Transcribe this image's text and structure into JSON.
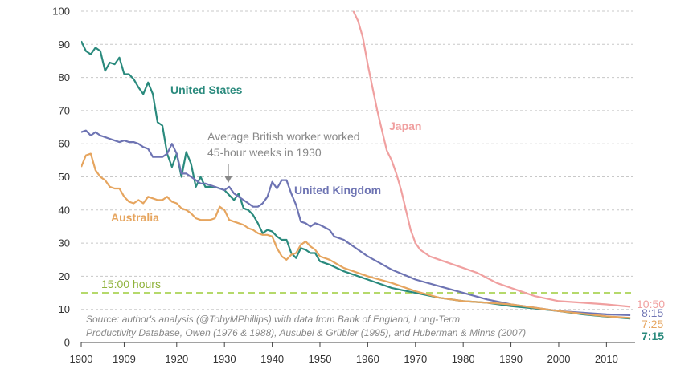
{
  "chart_data": {
    "type": "line",
    "title": "",
    "xlabel": "",
    "ylabel": "",
    "xlim": [
      1900,
      2016
    ],
    "ylim": [
      0,
      100
    ],
    "x_ticks": [
      1900,
      1909,
      1920,
      1930,
      1940,
      1950,
      1960,
      1970,
      1980,
      1990,
      2000,
      2010
    ],
    "x_tick_labels": [
      "1900",
      "1909",
      "1920",
      "1930",
      "1940",
      "1950",
      "1960",
      "1970",
      "1980",
      "1990",
      "2000",
      "2010"
    ],
    "y_ticks": [
      0,
      10,
      20,
      30,
      40,
      50,
      60,
      70,
      80,
      90,
      100
    ],
    "y_tick_labels": [
      "0",
      "10",
      "20",
      "30",
      "40",
      "50",
      "60",
      "70",
      "80",
      "90",
      "100"
    ],
    "grid": "horizontal dashed",
    "series": [
      {
        "name": "United States",
        "color": "#2a8a7d",
        "points": [
          [
            1900,
            91
          ],
          [
            1901,
            88
          ],
          [
            1902,
            87
          ],
          [
            1903,
            89
          ],
          [
            1904,
            88
          ],
          [
            1905,
            82
          ],
          [
            1906,
            84.5
          ],
          [
            1907,
            84
          ],
          [
            1908,
            86
          ],
          [
            1909,
            81
          ],
          [
            1910,
            81
          ],
          [
            1911,
            79.5
          ],
          [
            1912,
            77
          ],
          [
            1913,
            75
          ],
          [
            1914,
            78.5
          ],
          [
            1915,
            75
          ],
          [
            1916,
            66.5
          ],
          [
            1917,
            65.5
          ],
          [
            1918,
            57
          ],
          [
            1919,
            53
          ],
          [
            1920,
            57
          ],
          [
            1921,
            50
          ],
          [
            1922,
            57.5
          ],
          [
            1923,
            54
          ],
          [
            1924,
            47
          ],
          [
            1925,
            50
          ],
          [
            1926,
            47
          ],
          [
            1927,
            47
          ],
          [
            1928,
            47
          ],
          [
            1929,
            46.5
          ],
          [
            1930,
            46
          ],
          [
            1931,
            44.5
          ],
          [
            1932,
            43
          ],
          [
            1933,
            45
          ],
          [
            1934,
            40.5
          ],
          [
            1935,
            40
          ],
          [
            1936,
            38.5
          ],
          [
            1937,
            36
          ],
          [
            1938,
            33
          ],
          [
            1939,
            34
          ],
          [
            1940,
            33.5
          ],
          [
            1941,
            32
          ],
          [
            1942,
            31
          ],
          [
            1943,
            31
          ],
          [
            1944,
            27
          ],
          [
            1945,
            25.5
          ],
          [
            1946,
            28.5
          ],
          [
            1947,
            28
          ],
          [
            1948,
            27
          ],
          [
            1949,
            27
          ],
          [
            1950,
            24.5
          ],
          [
            1952,
            23.5
          ],
          [
            1955,
            21.5
          ],
          [
            1960,
            19
          ],
          [
            1965,
            16.5
          ],
          [
            1970,
            15
          ],
          [
            1975,
            13.5
          ],
          [
            1980,
            12.5
          ],
          [
            1985,
            12
          ],
          [
            1990,
            11
          ],
          [
            1995,
            10.3
          ],
          [
            2000,
            9.5
          ],
          [
            2005,
            8.5
          ],
          [
            2010,
            7.8
          ],
          [
            2015,
            7.25
          ]
        ],
        "end_label": "7:15"
      },
      {
        "name": "United Kingdom",
        "color": "#6e74b3",
        "points": [
          [
            1900,
            63.5
          ],
          [
            1901,
            64
          ],
          [
            1902,
            62.5
          ],
          [
            1903,
            63.5
          ],
          [
            1904,
            62.5
          ],
          [
            1905,
            62
          ],
          [
            1906,
            61.5
          ],
          [
            1907,
            61
          ],
          [
            1908,
            60.5
          ],
          [
            1909,
            61
          ],
          [
            1910,
            60.5
          ],
          [
            1911,
            60.5
          ],
          [
            1912,
            60
          ],
          [
            1913,
            59
          ],
          [
            1914,
            58.5
          ],
          [
            1915,
            56
          ],
          [
            1916,
            56
          ],
          [
            1917,
            56
          ],
          [
            1918,
            57
          ],
          [
            1919,
            60
          ],
          [
            1920,
            57
          ],
          [
            1921,
            51
          ],
          [
            1922,
            51
          ],
          [
            1923,
            50
          ],
          [
            1924,
            49
          ],
          [
            1925,
            48
          ],
          [
            1926,
            48
          ],
          [
            1927,
            47.5
          ],
          [
            1928,
            47
          ],
          [
            1929,
            46.5
          ],
          [
            1930,
            46
          ],
          [
            1931,
            47
          ],
          [
            1932,
            45
          ],
          [
            1933,
            44
          ],
          [
            1934,
            43
          ],
          [
            1935,
            42
          ],
          [
            1936,
            41
          ],
          [
            1937,
            41
          ],
          [
            1938,
            42
          ],
          [
            1939,
            44
          ],
          [
            1940,
            48.5
          ],
          [
            1941,
            46.5
          ],
          [
            1942,
            49
          ],
          [
            1943,
            49
          ],
          [
            1944,
            45
          ],
          [
            1945,
            41.5
          ],
          [
            1946,
            36.5
          ],
          [
            1947,
            36
          ],
          [
            1948,
            35
          ],
          [
            1949,
            36
          ],
          [
            1950,
            35.5
          ],
          [
            1952,
            34
          ],
          [
            1953,
            32
          ],
          [
            1955,
            31
          ],
          [
            1957,
            29
          ],
          [
            1960,
            26
          ],
          [
            1965,
            22
          ],
          [
            1970,
            19
          ],
          [
            1975,
            17
          ],
          [
            1980,
            15
          ],
          [
            1985,
            13
          ],
          [
            1990,
            11.5
          ],
          [
            1995,
            10.5
          ],
          [
            2000,
            9.5
          ],
          [
            2005,
            9
          ],
          [
            2010,
            8.5
          ],
          [
            2015,
            8.25
          ]
        ],
        "end_label": "8:15"
      },
      {
        "name": "Australia",
        "color": "#e6a55f",
        "points": [
          [
            1900,
            53
          ],
          [
            1901,
            56.5
          ],
          [
            1902,
            57
          ],
          [
            1903,
            52
          ],
          [
            1904,
            50
          ],
          [
            1905,
            49
          ],
          [
            1906,
            47
          ],
          [
            1907,
            46.5
          ],
          [
            1908,
            46.5
          ],
          [
            1909,
            44
          ],
          [
            1910,
            42.5
          ],
          [
            1911,
            42
          ],
          [
            1912,
            43
          ],
          [
            1913,
            42
          ],
          [
            1914,
            44
          ],
          [
            1915,
            43.5
          ],
          [
            1916,
            43
          ],
          [
            1917,
            43
          ],
          [
            1918,
            44
          ],
          [
            1919,
            42.5
          ],
          [
            1920,
            42
          ],
          [
            1921,
            40.5
          ],
          [
            1922,
            40
          ],
          [
            1923,
            39
          ],
          [
            1924,
            37.5
          ],
          [
            1925,
            37
          ],
          [
            1926,
            37
          ],
          [
            1927,
            37
          ],
          [
            1928,
            37.5
          ],
          [
            1929,
            41
          ],
          [
            1930,
            40
          ],
          [
            1931,
            37
          ],
          [
            1932,
            36.5
          ],
          [
            1933,
            36
          ],
          [
            1934,
            35.5
          ],
          [
            1935,
            34.5
          ],
          [
            1936,
            34
          ],
          [
            1937,
            33
          ],
          [
            1938,
            32.5
          ],
          [
            1939,
            32.5
          ],
          [
            1940,
            32
          ],
          [
            1941,
            28.5
          ],
          [
            1942,
            26
          ],
          [
            1943,
            25
          ],
          [
            1944,
            26.5
          ],
          [
            1945,
            27
          ],
          [
            1946,
            29.5
          ],
          [
            1947,
            30.5
          ],
          [
            1948,
            29
          ],
          [
            1949,
            28
          ],
          [
            1950,
            26
          ],
          [
            1952,
            25
          ],
          [
            1955,
            22.5
          ],
          [
            1960,
            20
          ],
          [
            1965,
            18
          ],
          [
            1970,
            15.5
          ],
          [
            1975,
            13.5
          ],
          [
            1980,
            12.5
          ],
          [
            1985,
            12
          ],
          [
            1990,
            11.5
          ],
          [
            1995,
            10.5
          ],
          [
            2000,
            9.5
          ],
          [
            2005,
            8.7
          ],
          [
            2010,
            7.9
          ],
          [
            2015,
            7.4
          ]
        ],
        "end_label": "7:25"
      },
      {
        "name": "Japan",
        "color": "#f0a0a0",
        "points": [
          [
            1957,
            100
          ],
          [
            1958,
            97
          ],
          [
            1959,
            92
          ],
          [
            1960,
            84
          ],
          [
            1961,
            77
          ],
          [
            1962,
            70
          ],
          [
            1963,
            64
          ],
          [
            1964,
            58
          ],
          [
            1965,
            55
          ],
          [
            1966,
            51
          ],
          [
            1967,
            46
          ],
          [
            1968,
            40
          ],
          [
            1969,
            34
          ],
          [
            1970,
            30
          ],
          [
            1971,
            28
          ],
          [
            1972,
            27
          ],
          [
            1973,
            26
          ],
          [
            1975,
            25
          ],
          [
            1977,
            24
          ],
          [
            1980,
            22.5
          ],
          [
            1983,
            21
          ],
          [
            1985,
            19.5
          ],
          [
            1987,
            18
          ],
          [
            1990,
            16.5
          ],
          [
            1993,
            15
          ],
          [
            1995,
            14
          ],
          [
            2000,
            12.5
          ],
          [
            2005,
            12
          ],
          [
            2010,
            11.5
          ],
          [
            2015,
            10.8
          ]
        ],
        "end_label": "10:50"
      }
    ],
    "reference_line": {
      "y": 15,
      "label": "15:00 hours",
      "color": "#b5d96b"
    },
    "annotation": {
      "line1": "Average British worker worked",
      "line2": "45-hour weeks in 1930",
      "x": 1930,
      "y": 47
    },
    "source": {
      "line1": "Source: author's analysis (@TobyMPhillips) with data from Bank of England, Long-Term",
      "line2": "Productivity Database, Owen (1976 & 1988), Ausubel & Grübler (1995), and Huberman & Minns (2007)"
    }
  }
}
